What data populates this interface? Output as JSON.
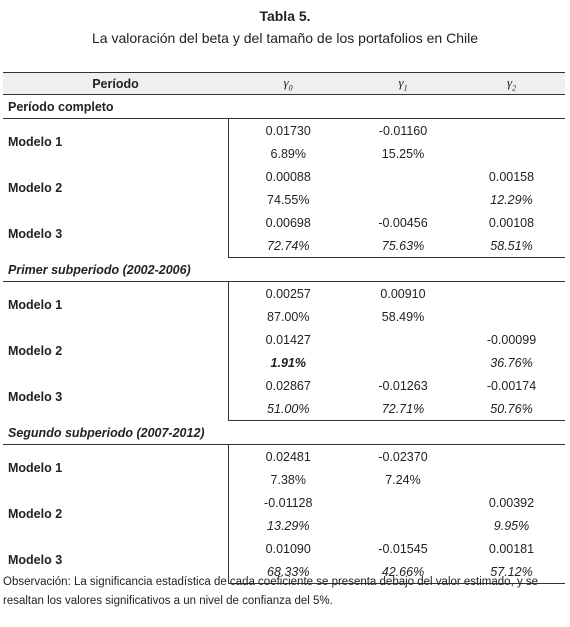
{
  "title": "Tabla 5.",
  "subtitle": "La valoración del beta y del tamaño de los portafolios en Chile",
  "headers": {
    "period": "Período",
    "g0": "γ",
    "g0sub": "0",
    "g1": "γ",
    "g1sub": "1",
    "g2": "γ",
    "g2sub": "2"
  },
  "sections": [
    {
      "label": "Período completo",
      "models": [
        {
          "name": "Modelo 1",
          "coef": [
            "0.01730",
            "-0.01160",
            ""
          ],
          "pval": [
            "6.89%",
            "15.25%",
            ""
          ]
        },
        {
          "name": "Modelo 2",
          "coef": [
            "0.00088",
            "",
            "0.00158"
          ],
          "pval": [
            "74.55%",
            "",
            "12.29%"
          ]
        },
        {
          "name": "Modelo 3",
          "coef": [
            "0.00698",
            "-0.00456",
            "0.00108"
          ],
          "pval": [
            "72.74%",
            "75.63%",
            "58.51%"
          ]
        }
      ]
    },
    {
      "label": "Primer subperiodo (2002-2006)",
      "models": [
        {
          "name": "Modelo 1",
          "coef": [
            "0.00257",
            "0.00910",
            ""
          ],
          "pval": [
            "87.00%",
            "58.49%",
            ""
          ]
        },
        {
          "name": "Modelo 2",
          "coef": [
            "0.01427",
            "",
            "-0.00099"
          ],
          "pval": [
            "1.91%",
            "",
            "36.76%"
          ]
        },
        {
          "name": "Modelo 3",
          "coef": [
            "0.02867",
            "-0.01263",
            "-0.00174"
          ],
          "pval": [
            "51.00%",
            "72.71%",
            "50.76%"
          ]
        }
      ]
    },
    {
      "label": "Segundo subperiodo (2007-2012)",
      "models": [
        {
          "name": "Modelo 1",
          "coef": [
            "0.02481",
            "-0.02370",
            ""
          ],
          "pval": [
            "7.38%",
            "7.24%",
            ""
          ]
        },
        {
          "name": "Modelo 2",
          "coef": [
            "-0.01128",
            "",
            "0.00392"
          ],
          "pval": [
            "13.29%",
            "",
            "9.95%"
          ]
        },
        {
          "name": "Modelo 3",
          "coef": [
            "0.01090",
            "-0.01545",
            "0.00181"
          ],
          "pval": [
            "68.33%",
            "42.66%",
            "57.12%"
          ]
        }
      ]
    }
  ],
  "note": "Observación: La significancia estadística de cada coeficiente se presenta debajo del valor estimado, y se resaltan los valores significativos a un nivel de confianza del 5%."
}
